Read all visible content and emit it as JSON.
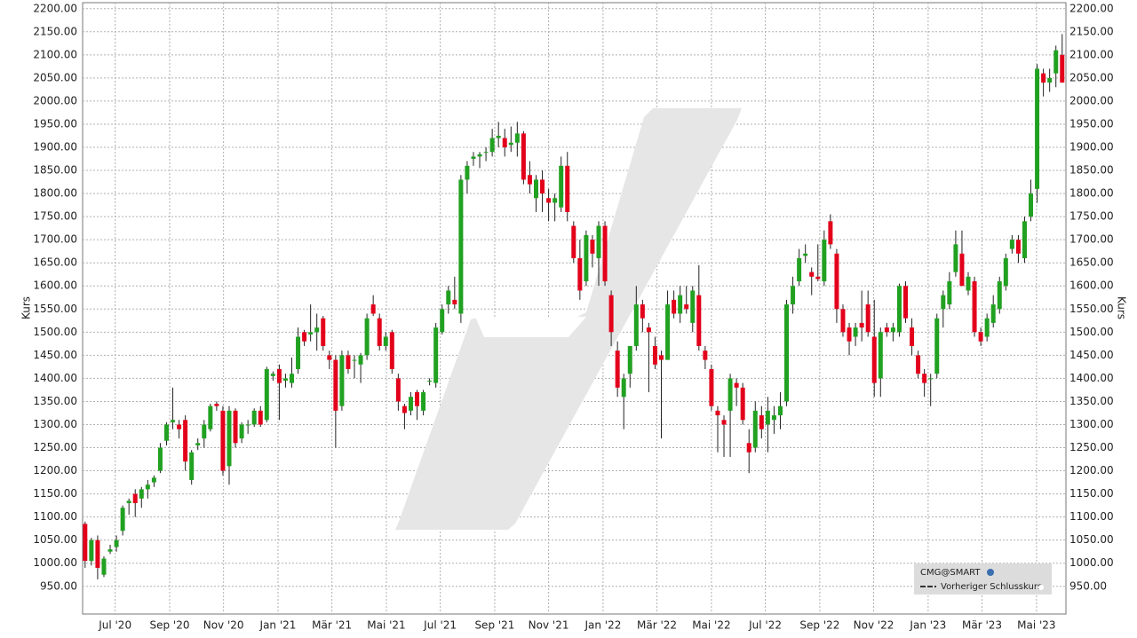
{
  "chart_data": {
    "type": "candlestick",
    "y_label": "Kurs",
    "series_name": "CMG@SMART",
    "legend_items": [
      "Vorheriger Schlusskurs"
    ],
    "up_color": "#21a121",
    "down_color": "#e3001b",
    "grid": true,
    "ylim": [
      890,
      2213
    ],
    "yticks": [
      {
        "value": 950,
        "label": "950.00"
      },
      {
        "value": 1000,
        "label": "1000.00"
      },
      {
        "value": 1050,
        "label": "1050.00"
      },
      {
        "value": 1100,
        "label": "1100.00"
      },
      {
        "value": 1150,
        "label": "1150.00"
      },
      {
        "value": 1200,
        "label": "1200.00"
      },
      {
        "value": 1250,
        "label": "1250.00"
      },
      {
        "value": 1300,
        "label": "1300.00"
      },
      {
        "value": 1350,
        "label": "1350.00"
      },
      {
        "value": 1400,
        "label": "1400.00"
      },
      {
        "value": 1450,
        "label": "1450.00"
      },
      {
        "value": 1500,
        "label": "1500.00"
      },
      {
        "value": 1550,
        "label": "1550.00"
      },
      {
        "value": 1600,
        "label": "1600.00"
      },
      {
        "value": 1650,
        "label": "1650.00"
      },
      {
        "value": 1700,
        "label": "1700.00"
      },
      {
        "value": 1750,
        "label": "1750.00"
      },
      {
        "value": 1800,
        "label": "1800.00"
      },
      {
        "value": 1850,
        "label": "1850.00"
      },
      {
        "value": 1900,
        "label": "1900.00"
      },
      {
        "value": 1950,
        "label": "1950.00"
      },
      {
        "value": 2000,
        "label": "2000.00"
      },
      {
        "value": 2050,
        "label": "2050.00"
      },
      {
        "value": 2100,
        "label": "2100.00"
      },
      {
        "value": 2150,
        "label": "2150.00"
      },
      {
        "value": 2200,
        "label": "2200.00"
      }
    ],
    "xlim": [
      -0.4,
      156.6
    ],
    "xticks": [
      {
        "value": 4.8,
        "label": "Jul '20"
      },
      {
        "value": 13.5,
        "label": "Sep '20"
      },
      {
        "value": 22.1,
        "label": "Nov '20"
      },
      {
        "value": 30.8,
        "label": "Jan '21"
      },
      {
        "value": 39.4,
        "label": "Mär '21"
      },
      {
        "value": 48.1,
        "label": "Mai '21"
      },
      {
        "value": 56.7,
        "label": "Jul '21"
      },
      {
        "value": 65.4,
        "label": "Sep '21"
      },
      {
        "value": 74,
        "label": "Nov '21"
      },
      {
        "value": 82.7,
        "label": "Jan '22"
      },
      {
        "value": 91.3,
        "label": "Mär '22"
      },
      {
        "value": 100,
        "label": "Mai '22"
      },
      {
        "value": 108.6,
        "label": "Jul '22"
      },
      {
        "value": 117.3,
        "label": "Sep '22"
      },
      {
        "value": 125.9,
        "label": "Nov '22"
      },
      {
        "value": 134.6,
        "label": "Jan '23"
      },
      {
        "value": 143.2,
        "label": "Mär '23"
      },
      {
        "value": 151.9,
        "label": "Mai '23"
      }
    ],
    "x": [
      0,
      1,
      2,
      3,
      4,
      5,
      6,
      7,
      8,
      9,
      10,
      11,
      12,
      13,
      14,
      15,
      16,
      17,
      18,
      19,
      20,
      21,
      22,
      23,
      24,
      25,
      26,
      27,
      28,
      29,
      30,
      31,
      32,
      33,
      34,
      35,
      36,
      37,
      38,
      39,
      40,
      41,
      42,
      43,
      44,
      45,
      46,
      47,
      48,
      49,
      50,
      51,
      52,
      53,
      54,
      55,
      56,
      57,
      58,
      59,
      60,
      61,
      62,
      63,
      64,
      65,
      66,
      67,
      68,
      69,
      70,
      71,
      72,
      73,
      74,
      75,
      76,
      77,
      78,
      79,
      80,
      81,
      82,
      83,
      84,
      85,
      86,
      87,
      88,
      89,
      90,
      91,
      92,
      93,
      94,
      95,
      96,
      97,
      98,
      99,
      100,
      101,
      102,
      103,
      104,
      105,
      106,
      107,
      108,
      109,
      110,
      111,
      112,
      113,
      114,
      115,
      116,
      117,
      118,
      119,
      120,
      121,
      122,
      123,
      124,
      125,
      126,
      127,
      128,
      129,
      130,
      131,
      132,
      133,
      134,
      135,
      136,
      137,
      138,
      139,
      140,
      141,
      142,
      143,
      144,
      145,
      146,
      147,
      148,
      149,
      150,
      151,
      152,
      153,
      154,
      155,
      156
    ],
    "ohlc": [
      [
        1085,
        1090,
        990,
        1005
      ],
      [
        1005,
        1055,
        995,
        1050
      ],
      [
        1050,
        1060,
        965,
        990
      ],
      [
        975,
        1015,
        970,
        1010
      ],
      [
        1025,
        1040,
        1020,
        1030
      ],
      [
        1035,
        1060,
        1025,
        1050
      ],
      [
        1070,
        1125,
        1060,
        1120
      ],
      [
        1130,
        1140,
        1105,
        1135
      ],
      [
        1150,
        1160,
        1100,
        1130
      ],
      [
        1140,
        1165,
        1120,
        1160
      ],
      [
        1160,
        1180,
        1140,
        1170
      ],
      [
        1175,
        1190,
        1165,
        1185
      ],
      [
        1200,
        1260,
        1195,
        1250
      ],
      [
        1265,
        1305,
        1255,
        1300
      ],
      [
        1305,
        1380,
        1290,
        1310
      ],
      [
        1300,
        1310,
        1270,
        1290
      ],
      [
        1310,
        1320,
        1200,
        1220
      ],
      [
        1180,
        1245,
        1170,
        1240
      ],
      [
        1255,
        1270,
        1245,
        1260
      ],
      [
        1270,
        1310,
        1250,
        1300
      ],
      [
        1290,
        1345,
        1285,
        1340
      ],
      [
        1345,
        1350,
        1330,
        1340
      ],
      [
        1330,
        1340,
        1190,
        1200
      ],
      [
        1210,
        1340,
        1170,
        1330
      ],
      [
        1330,
        1335,
        1250,
        1260
      ],
      [
        1270,
        1305,
        1260,
        1300
      ],
      [
        1300,
        1310,
        1280,
        1300
      ],
      [
        1300,
        1335,
        1295,
        1330
      ],
      [
        1330,
        1340,
        1295,
        1300
      ],
      [
        1310,
        1425,
        1305,
        1420
      ],
      [
        1405,
        1415,
        1395,
        1410
      ],
      [
        1420,
        1430,
        1310,
        1390
      ],
      [
        1395,
        1410,
        1380,
        1400
      ],
      [
        1390,
        1445,
        1380,
        1410
      ],
      [
        1420,
        1510,
        1410,
        1490
      ],
      [
        1500,
        1505,
        1470,
        1480
      ],
      [
        1495,
        1560,
        1480,
        1500
      ],
      [
        1500,
        1540,
        1460,
        1510
      ],
      [
        1530,
        1535,
        1460,
        1470
      ],
      [
        1450,
        1460,
        1420,
        1440
      ],
      [
        1440,
        1450,
        1250,
        1330
      ],
      [
        1340,
        1460,
        1330,
        1450
      ],
      [
        1450,
        1460,
        1410,
        1420
      ],
      [
        1440,
        1450,
        1400,
        1440
      ],
      [
        1430,
        1455,
        1390,
        1450
      ],
      [
        1450,
        1540,
        1440,
        1530
      ],
      [
        1560,
        1580,
        1535,
        1540
      ],
      [
        1530,
        1540,
        1460,
        1470
      ],
      [
        1470,
        1500,
        1460,
        1490
      ],
      [
        1500,
        1505,
        1410,
        1420
      ],
      [
        1400,
        1410,
        1330,
        1350
      ],
      [
        1340,
        1345,
        1290,
        1325
      ],
      [
        1330,
        1370,
        1320,
        1360
      ],
      [
        1370,
        1375,
        1310,
        1340
      ],
      [
        1330,
        1375,
        1320,
        1370
      ],
      [
        1395,
        1400,
        1385,
        1395
      ],
      [
        1390,
        1520,
        1380,
        1510
      ],
      [
        1500,
        1560,
        1495,
        1550
      ],
      [
        1560,
        1600,
        1540,
        1590
      ],
      [
        1570,
        1620,
        1550,
        1560
      ],
      [
        1540,
        1840,
        1520,
        1830
      ],
      [
        1830,
        1870,
        1800,
        1860
      ],
      [
        1875,
        1890,
        1860,
        1880
      ],
      [
        1880,
        1890,
        1855,
        1885
      ],
      [
        1890,
        1900,
        1870,
        1890
      ],
      [
        1890,
        1940,
        1880,
        1920
      ],
      [
        1920,
        1955,
        1900,
        1925
      ],
      [
        1920,
        1940,
        1880,
        1900
      ],
      [
        1905,
        1945,
        1890,
        1910
      ],
      [
        1910,
        1955,
        1880,
        1930
      ],
      [
        1930,
        1935,
        1820,
        1830
      ],
      [
        1840,
        1870,
        1800,
        1820
      ],
      [
        1790,
        1840,
        1760,
        1830
      ],
      [
        1830,
        1850,
        1760,
        1800
      ],
      [
        1790,
        1810,
        1740,
        1780
      ],
      [
        1780,
        1800,
        1740,
        1790
      ],
      [
        1770,
        1880,
        1760,
        1860
      ],
      [
        1860,
        1890,
        1740,
        1760
      ],
      [
        1730,
        1740,
        1650,
        1660
      ],
      [
        1660,
        1700,
        1570,
        1590
      ],
      [
        1610,
        1720,
        1600,
        1710
      ],
      [
        1700,
        1710,
        1640,
        1670
      ],
      [
        1660,
        1740,
        1600,
        1730
      ],
      [
        1730,
        1740,
        1600,
        1610
      ],
      [
        1580,
        1590,
        1470,
        1500
      ],
      [
        1460,
        1480,
        1360,
        1380
      ],
      [
        1360,
        1410,
        1290,
        1400
      ],
      [
        1410,
        1470,
        1380,
        1470
      ],
      [
        1470,
        1600,
        1460,
        1560
      ],
      [
        1560,
        1570,
        1500,
        1530
      ],
      [
        1510,
        1520,
        1370,
        1500
      ],
      [
        1470,
        1490,
        1420,
        1430
      ],
      [
        1450,
        1460,
        1270,
        1440
      ],
      [
        1440,
        1590,
        1440,
        1560
      ],
      [
        1570,
        1590,
        1530,
        1540
      ],
      [
        1540,
        1600,
        1520,
        1580
      ],
      [
        1560,
        1600,
        1540,
        1550
      ],
      [
        1520,
        1600,
        1500,
        1590
      ],
      [
        1580,
        1645,
        1460,
        1470
      ],
      [
        1460,
        1470,
        1420,
        1440
      ],
      [
        1420,
        1430,
        1330,
        1340
      ],
      [
        1330,
        1340,
        1240,
        1320
      ],
      [
        1310,
        1320,
        1230,
        1300
      ],
      [
        1330,
        1410,
        1230,
        1400
      ],
      [
        1390,
        1400,
        1340,
        1380
      ],
      [
        1380,
        1390,
        1300,
        1310
      ],
      [
        1260,
        1290,
        1195,
        1240
      ],
      [
        1250,
        1350,
        1240,
        1330
      ],
      [
        1320,
        1340,
        1270,
        1290
      ],
      [
        1300,
        1360,
        1240,
        1330
      ],
      [
        1310,
        1340,
        1280,
        1320
      ],
      [
        1320,
        1370,
        1290,
        1340
      ],
      [
        1350,
        1570,
        1340,
        1560
      ],
      [
        1560,
        1620,
        1540,
        1600
      ],
      [
        1610,
        1680,
        1600,
        1660
      ],
      [
        1665,
        1690,
        1650,
        1670
      ],
      [
        1630,
        1640,
        1580,
        1620
      ],
      [
        1620,
        1690,
        1610,
        1615
      ],
      [
        1610,
        1720,
        1600,
        1700
      ],
      [
        1740,
        1755,
        1680,
        1690
      ],
      [
        1670,
        1680,
        1520,
        1550
      ],
      [
        1550,
        1560,
        1490,
        1500
      ],
      [
        1510,
        1520,
        1450,
        1480
      ],
      [
        1490,
        1520,
        1470,
        1510
      ],
      [
        1520,
        1590,
        1480,
        1510
      ],
      [
        1560,
        1590,
        1490,
        1500
      ],
      [
        1490,
        1570,
        1360,
        1390
      ],
      [
        1400,
        1510,
        1360,
        1500
      ],
      [
        1510,
        1520,
        1490,
        1500
      ],
      [
        1500,
        1520,
        1480,
        1510
      ],
      [
        1500,
        1605,
        1490,
        1600
      ],
      [
        1600,
        1610,
        1520,
        1530
      ],
      [
        1510,
        1530,
        1450,
        1470
      ],
      [
        1450,
        1460,
        1400,
        1410
      ],
      [
        1410,
        1420,
        1360,
        1390
      ],
      [
        1400,
        1410,
        1340,
        1400
      ],
      [
        1410,
        1540,
        1400,
        1530
      ],
      [
        1550,
        1590,
        1510,
        1580
      ],
      [
        1560,
        1630,
        1550,
        1610
      ],
      [
        1630,
        1720,
        1620,
        1690
      ],
      [
        1670,
        1720,
        1600,
        1600
      ],
      [
        1590,
        1630,
        1580,
        1620
      ],
      [
        1610,
        1620,
        1490,
        1500
      ],
      [
        1500,
        1510,
        1470,
        1480
      ],
      [
        1490,
        1540,
        1480,
        1530
      ],
      [
        1520,
        1580,
        1510,
        1560
      ],
      [
        1550,
        1620,
        1540,
        1610
      ],
      [
        1600,
        1670,
        1590,
        1660
      ],
      [
        1680,
        1710,
        1670,
        1700
      ],
      [
        1700,
        1710,
        1650,
        1670
      ],
      [
        1660,
        1750,
        1650,
        1740
      ],
      [
        1750,
        1830,
        1740,
        1800
      ],
      [
        1810,
        2080,
        1780,
        2070
      ],
      [
        2060,
        2070,
        2010,
        2040
      ],
      [
        2040,
        2070,
        2020,
        2050
      ],
      [
        2060,
        2120,
        2030,
        2110
      ],
      [
        2100,
        2145,
        2040,
        2040
      ]
    ]
  }
}
